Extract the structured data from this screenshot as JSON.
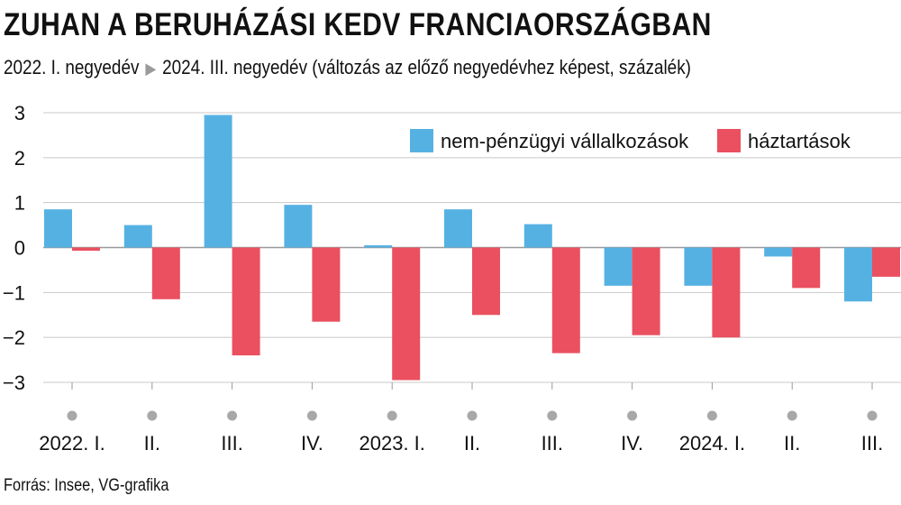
{
  "header": {
    "title": "ZUHAN A BERUHÁZÁSI KEDV FRANCIAORSZÁGBAN",
    "subtitle_start": "2022. I. negyedév",
    "subtitle_end": "2024. III. negyedév (változás az előző negyedévhez képest, százalék)"
  },
  "footer": {
    "source": "Forrás: Insee, VG-grafika"
  },
  "colors": {
    "series1": "#56b1e3",
    "series2": "#ea505f",
    "grid": "#c8c8c8",
    "dot": "#a8a8a8"
  },
  "chart_data": {
    "type": "bar",
    "title": "ZUHAN A BERUHÁZÁSI KEDV FRANCIAORSZÁGBAN",
    "categories": [
      "2022. I.",
      "II.",
      "III.",
      "IV.",
      "2023. I.",
      "II.",
      "III.",
      "IV.",
      "2024. I.",
      "II.",
      "III."
    ],
    "series": [
      {
        "name": "nem-pénzügyi vállalkozások",
        "values": [
          0.85,
          0.5,
          2.95,
          0.95,
          0.05,
          0.85,
          0.52,
          -0.85,
          -0.85,
          -0.2,
          -1.2
        ]
      },
      {
        "name": "háztartások",
        "values": [
          -0.07,
          -1.15,
          -2.4,
          -1.65,
          -2.95,
          -1.5,
          -2.35,
          -1.95,
          -2.0,
          -0.9,
          -0.65
        ]
      }
    ],
    "yticks": [
      "3",
      "2",
      "1",
      "0",
      "−1",
      "−2",
      "−3"
    ],
    "ylim": [
      -3,
      3
    ],
    "xlabel": "",
    "ylabel": ""
  }
}
